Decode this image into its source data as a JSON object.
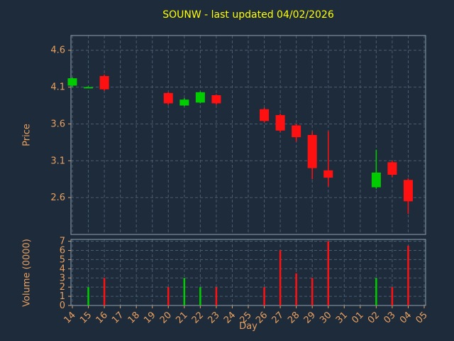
{
  "colors": {
    "background": "#1e2b3b",
    "title": "#ffff00",
    "axis_label": "#e8a05f",
    "tick_label": "#e8a05f",
    "grid": "#4a5c70",
    "spine": "#8ea0ad",
    "up": "#00cc00",
    "down": "#ff1111"
  },
  "chart_data": [
    {
      "type": "candlestick",
      "title": "SOUNW - last updated 04/02/2026",
      "xlabel": "Day",
      "ylabel": "Price",
      "grid": true,
      "x_ticks": [
        "14",
        "15",
        "16",
        "17",
        "18",
        "19",
        "20",
        "21",
        "22",
        "23",
        "24",
        "25",
        "26",
        "27",
        "28",
        "29",
        "30",
        "31",
        "01",
        "02",
        "03",
        "04",
        "05"
      ],
      "ylim": [
        2.1,
        4.8
      ],
      "y_ticks": [
        2.6,
        3.1,
        3.6,
        4.1,
        4.6
      ],
      "candles": [
        {
          "day": "14",
          "open": 4.12,
          "high": 4.23,
          "low": 4.1,
          "close": 4.22
        },
        {
          "day": "15",
          "open": 4.1,
          "high": 4.11,
          "low": 4.09,
          "close": 4.1
        },
        {
          "day": "16",
          "open": 4.25,
          "high": 4.27,
          "low": 4.05,
          "close": 4.07
        },
        {
          "day": "20",
          "open": 4.02,
          "high": 4.03,
          "low": 3.86,
          "close": 3.88
        },
        {
          "day": "21",
          "open": 3.85,
          "high": 3.95,
          "low": 3.84,
          "close": 3.93
        },
        {
          "day": "22",
          "open": 3.89,
          "high": 4.04,
          "low": 3.88,
          "close": 4.03
        },
        {
          "day": "23",
          "open": 3.99,
          "high": 4.0,
          "low": 3.86,
          "close": 3.88
        },
        {
          "day": "26",
          "open": 3.8,
          "high": 3.82,
          "low": 3.62,
          "close": 3.64
        },
        {
          "day": "27",
          "open": 3.72,
          "high": 3.74,
          "low": 3.49,
          "close": 3.51
        },
        {
          "day": "28",
          "open": 3.58,
          "high": 3.6,
          "low": 3.36,
          "close": 3.42
        },
        {
          "day": "29",
          "open": 3.45,
          "high": 3.5,
          "low": 2.85,
          "close": 3.0
        },
        {
          "day": "30",
          "open": 2.97,
          "high": 3.5,
          "low": 2.75,
          "close": 2.87
        },
        {
          "day": "02",
          "open": 2.74,
          "high": 3.25,
          "low": 2.72,
          "close": 2.94
        },
        {
          "day": "03",
          "open": 3.08,
          "high": 3.1,
          "low": 2.88,
          "close": 2.91
        },
        {
          "day": "04",
          "open": 2.84,
          "high": 2.86,
          "low": 2.38,
          "close": 2.55
        }
      ]
    },
    {
      "type": "bar",
      "ylabel": "Volume (0000)",
      "grid": true,
      "ylim": [
        0,
        7.2
      ],
      "y_ticks": [
        0,
        1,
        2,
        3,
        4,
        5,
        6,
        7
      ],
      "bars": [
        {
          "day": "15",
          "value": 2.0,
          "direction": "up"
        },
        {
          "day": "16",
          "value": 3.0,
          "direction": "down"
        },
        {
          "day": "20",
          "value": 2.0,
          "direction": "down"
        },
        {
          "day": "21",
          "value": 3.0,
          "direction": "up"
        },
        {
          "day": "22",
          "value": 2.0,
          "direction": "up"
        },
        {
          "day": "23",
          "value": 2.0,
          "direction": "down"
        },
        {
          "day": "26",
          "value": 2.0,
          "direction": "down"
        },
        {
          "day": "27",
          "value": 6.0,
          "direction": "down"
        },
        {
          "day": "28",
          "value": 3.5,
          "direction": "down"
        },
        {
          "day": "29",
          "value": 3.0,
          "direction": "down"
        },
        {
          "day": "30",
          "value": 7.0,
          "direction": "down"
        },
        {
          "day": "02",
          "value": 3.0,
          "direction": "up"
        },
        {
          "day": "03",
          "value": 2.0,
          "direction": "down"
        },
        {
          "day": "04",
          "value": 6.5,
          "direction": "down"
        }
      ]
    }
  ]
}
